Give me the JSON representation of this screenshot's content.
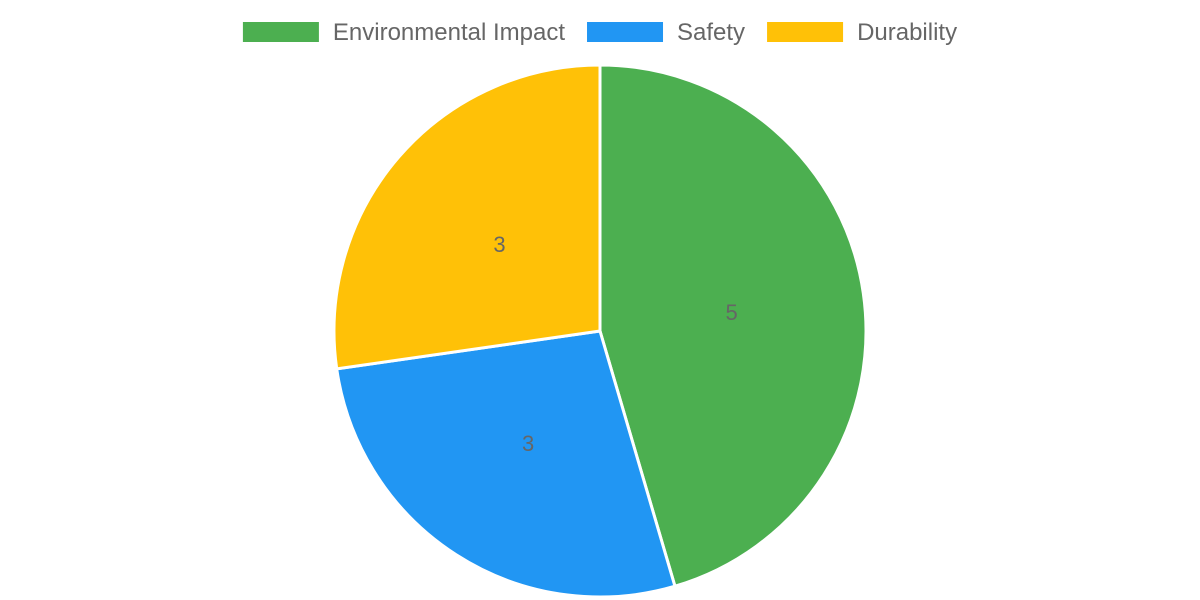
{
  "chart_data": {
    "type": "pie",
    "categories": [
      "Environmental Impact",
      "Safety",
      "Durability"
    ],
    "values": [
      5,
      3,
      3
    ],
    "data_labels": [
      "5",
      "3",
      "3"
    ],
    "colors": [
      "#4caf50",
      "#2196f3",
      "#ffc107"
    ],
    "slice_border_color": "#ffffff",
    "start_angle_deg": 0,
    "direction": "clockwise",
    "legend_position": "top",
    "title": ""
  }
}
